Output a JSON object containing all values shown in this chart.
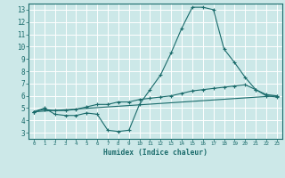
{
  "xlabel": "Humidex (Indice chaleur)",
  "bg_color": "#cce8e8",
  "grid_color": "#ffffff",
  "line_color": "#1a6b6b",
  "xlim": [
    -0.5,
    23.5
  ],
  "ylim": [
    2.5,
    13.5
  ],
  "xticks": [
    0,
    1,
    2,
    3,
    4,
    5,
    6,
    7,
    8,
    9,
    10,
    11,
    12,
    13,
    14,
    15,
    16,
    17,
    18,
    19,
    20,
    21,
    22,
    23
  ],
  "yticks": [
    3,
    4,
    5,
    6,
    7,
    8,
    9,
    10,
    11,
    12,
    13
  ],
  "line1_x": [
    0,
    1,
    2,
    3,
    4,
    5,
    6,
    7,
    8,
    9,
    10,
    11,
    12,
    13,
    14,
    15,
    16,
    17,
    18,
    19,
    20,
    21,
    22,
    23
  ],
  "line1_y": [
    4.7,
    5.0,
    4.5,
    4.4,
    4.4,
    4.6,
    4.5,
    3.2,
    3.1,
    3.2,
    5.3,
    6.5,
    7.7,
    9.5,
    11.5,
    13.2,
    13.2,
    13.0,
    9.8,
    8.7,
    7.5,
    6.5,
    6.0,
    5.9
  ],
  "line2_x": [
    0,
    1,
    2,
    3,
    4,
    5,
    6,
    7,
    8,
    9,
    10,
    11,
    12,
    13,
    14,
    15,
    16,
    17,
    18,
    19,
    20,
    21,
    22,
    23
  ],
  "line2_y": [
    4.7,
    4.9,
    4.8,
    4.8,
    4.9,
    5.1,
    5.3,
    5.3,
    5.5,
    5.5,
    5.7,
    5.8,
    5.9,
    6.0,
    6.2,
    6.4,
    6.5,
    6.6,
    6.7,
    6.8,
    6.9,
    6.5,
    6.1,
    6.0
  ],
  "line3_x": [
    0,
    23
  ],
  "line3_y": [
    4.7,
    6.0
  ]
}
